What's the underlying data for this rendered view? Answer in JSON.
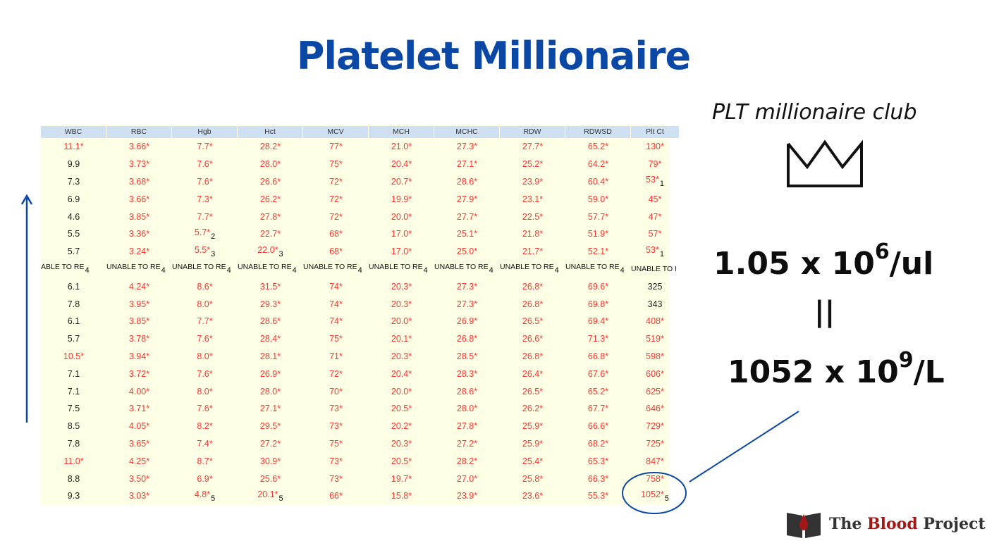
{
  "title": "Platelet Millionaire",
  "table": {
    "headers": [
      "WBC",
      "RBC",
      "Hgb",
      "Hct",
      "MCV",
      "MCH",
      "MCHC",
      "RDW",
      "RDWSD",
      "Plt Ct"
    ],
    "rows": [
      [
        "11.1*",
        "3.66*",
        "7.7*",
        "28.2*",
        "77*",
        "21.0*",
        "27.3*",
        "27.7*",
        "65.2*",
        "130*"
      ],
      [
        "9.9",
        "3.73*",
        "7.6*",
        "28.0*",
        "75*",
        "20.4*",
        "27.1*",
        "25.2*",
        "64.2*",
        "79*"
      ],
      [
        "7.3",
        "3.68*",
        "7.6*",
        "26.6*",
        "72*",
        "20.7*",
        "28.6*",
        "23.9*",
        "60.4*",
        "53*1"
      ],
      [
        "6.9",
        "3.66*",
        "7.3*",
        "26.2*",
        "72*",
        "19.9*",
        "27.9*",
        "23.1*",
        "59.0*",
        "45*"
      ],
      [
        "4.6",
        "3.85*",
        "7.7*",
        "27.8*",
        "72*",
        "20.0*",
        "27.7*",
        "22.5*",
        "57.7*",
        "47*"
      ],
      [
        "5.5",
        "3.36*",
        "5.7*2",
        "22.7*",
        "68*",
        "17.0*",
        "25.1*",
        "21.8*",
        "51.9*",
        "57*"
      ],
      [
        "5.7",
        "3.24*",
        "5.5*3",
        "22.0*3",
        "68*",
        "17.0*",
        "25.0*",
        "21.7*",
        "52.1*",
        "53*1"
      ],
      [
        "ABLE TO RE4",
        "UNABLE TO RE4",
        "UNABLE TO RE4",
        "UNABLE TO RE4",
        "UNABLE TO RE4",
        "UNABLE TO RE4",
        "UNABLE TO RE4",
        "UNABLE TO RE4",
        "UNABLE TO RE4",
        "UNABLE TO I"
      ],
      [
        "6.1",
        "4.24*",
        "8.6*",
        "31.5*",
        "74*",
        "20.3*",
        "27.3*",
        "26.8*",
        "69.6*",
        "325"
      ],
      [
        "7.8",
        "3.95*",
        "8.0*",
        "29.3*",
        "74*",
        "20.3*",
        "27.3*",
        "26.8*",
        "69.8*",
        "343"
      ],
      [
        "6.1",
        "3.85*",
        "7.7*",
        "28.6*",
        "74*",
        "20.0*",
        "26.9*",
        "26.5*",
        "69.4*",
        "408*"
      ],
      [
        "5.7",
        "3.78*",
        "7.6*",
        "28.4*",
        "75*",
        "20.1*",
        "26.8*",
        "26.6*",
        "71.3*",
        "519*"
      ],
      [
        "10.5*",
        "3.94*",
        "8.0*",
        "28.1*",
        "71*",
        "20.3*",
        "28.5*",
        "26.8*",
        "66.8*",
        "598*"
      ],
      [
        "7.1",
        "3.72*",
        "7.6*",
        "26.9*",
        "72*",
        "20.4*",
        "28.3*",
        "26.4*",
        "67.6*",
        "606*"
      ],
      [
        "7.1",
        "4.00*",
        "8.0*",
        "28.0*",
        "70*",
        "20.0*",
        "28.6*",
        "26.5*",
        "65.2*",
        "625*"
      ],
      [
        "7.5",
        "3.71*",
        "7.6*",
        "27.1*",
        "73*",
        "20.5*",
        "28.0*",
        "26.2*",
        "67.7*",
        "646*"
      ],
      [
        "8.5",
        "4.05*",
        "8.2*",
        "29.5*",
        "73*",
        "20.2*",
        "27.8*",
        "25.9*",
        "66.6*",
        "729*"
      ],
      [
        "7.8",
        "3.65*",
        "7.4*",
        "27.2*",
        "75*",
        "20.3*",
        "27.2*",
        "25.9*",
        "68.2*",
        "725*"
      ],
      [
        "11.0*",
        "4.25*",
        "8.7*",
        "30.9*",
        "73*",
        "20.5*",
        "28.2*",
        "25.4*",
        "65.3*",
        "847*"
      ],
      [
        "8.8",
        "3.50*",
        "6.9*",
        "25.6*",
        "73*",
        "19.7*",
        "27.0*",
        "25.8*",
        "66.3*",
        "758*"
      ],
      [
        "9.3",
        "3.03*",
        "4.8*5",
        "20.1*5",
        "66*",
        "15.8*",
        "23.9*",
        "23.6*",
        "55.3*",
        "1052*5"
      ]
    ]
  },
  "annotation": {
    "club": "PLT millionaire club",
    "line1_main": "1.05 x 10",
    "line1_exp": "6",
    "line1_unit": "/ul",
    "equiv": "||",
    "line2_main": "1052 x 10",
    "line2_exp": "9",
    "line2_unit": "/L"
  },
  "logo": {
    "text_1": "The ",
    "text_2": "Blood",
    "text_3": " Project"
  },
  "colors": {
    "title": "#0b47a5",
    "flag": "#ff3333",
    "annotation_blue": "#0b47a5"
  }
}
